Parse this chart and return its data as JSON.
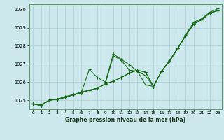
{
  "background_color": "#cce8ec",
  "grid_color": "#aacdd4",
  "line_color": "#1a6b1a",
  "xlabel": "Graphe pression niveau de la mer (hPa)",
  "xlim": [
    -0.5,
    23.5
  ],
  "ylim": [
    1024.5,
    1030.3
  ],
  "yticks": [
    1025,
    1026,
    1027,
    1028,
    1029,
    1030
  ],
  "xticks": [
    0,
    1,
    2,
    3,
    4,
    5,
    6,
    7,
    8,
    9,
    10,
    11,
    12,
    13,
    14,
    15,
    16,
    17,
    18,
    19,
    20,
    21,
    22,
    23
  ],
  "series": [
    [
      1024.8,
      1024.75,
      1025.0,
      1025.05,
      1025.15,
      1025.3,
      1025.4,
      1025.55,
      1025.65,
      1025.9,
      1026.05,
      1026.25,
      1026.5,
      1026.65,
      1026.55,
      1025.75,
      1026.6,
      1027.15,
      1027.85,
      1028.55,
      1029.2,
      1029.45,
      1029.8,
      1029.95
    ],
    [
      1024.8,
      1024.7,
      1025.0,
      1025.05,
      1025.15,
      1025.3,
      1025.4,
      1025.55,
      1025.65,
      1025.9,
      1027.45,
      1027.2,
      1026.65,
      1026.6,
      1025.85,
      1025.75,
      1026.6,
      1027.15,
      1027.85,
      1028.55,
      1029.2,
      1029.45,
      1029.8,
      1029.95
    ],
    [
      1024.8,
      1024.7,
      1025.0,
      1025.05,
      1025.15,
      1025.3,
      1025.4,
      1026.7,
      1026.25,
      1026.0,
      1027.55,
      1027.25,
      1026.95,
      1026.6,
      1026.35,
      1025.75,
      1026.6,
      1027.2,
      1027.85,
      1028.6,
      1029.3,
      1029.5,
      1029.85,
      1030.05
    ],
    [
      1024.8,
      1024.7,
      1025.0,
      1025.05,
      1025.2,
      1025.3,
      1025.45,
      1025.55,
      1025.65,
      1025.9,
      1026.05,
      1026.25,
      1026.5,
      1026.65,
      1026.55,
      1025.75,
      1026.6,
      1027.15,
      1027.85,
      1028.55,
      1029.2,
      1029.45,
      1029.8,
      1029.95
    ]
  ]
}
